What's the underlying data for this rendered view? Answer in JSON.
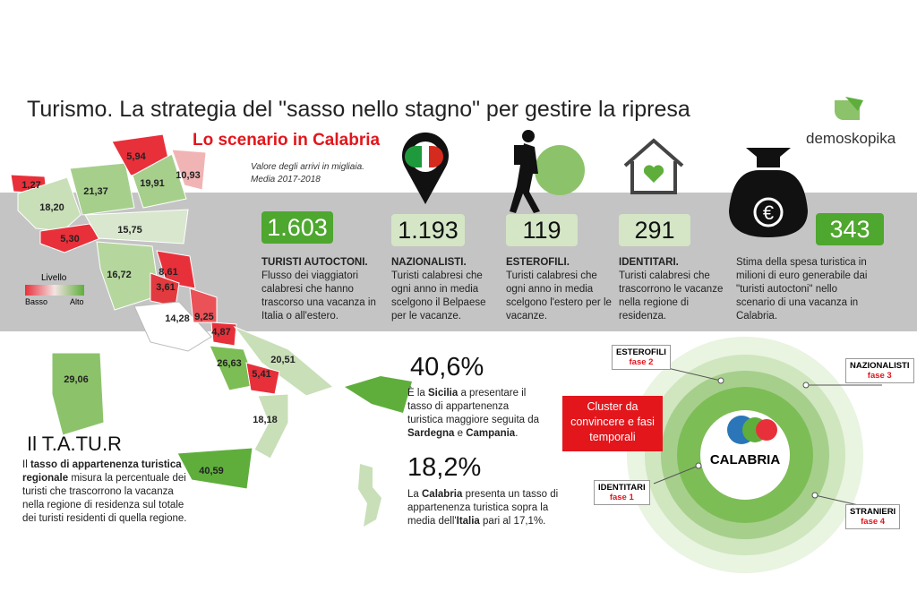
{
  "header": {
    "title": "Turismo. La strategia del \"sasso nello stagno\" per gestire la ripresa",
    "subtitle": "Lo scenario in Calabria",
    "logo": "demoskopika",
    "note": [
      "Valore degli arrivi in migliaia.",
      "Media 2017-2018"
    ]
  },
  "map": {
    "regions": [
      "1,27",
      "5,94",
      "10,93",
      "21,37",
      "19,91",
      "18,20",
      "15,75",
      "5,30",
      "16,72",
      "8,61",
      "3,61",
      "9,25",
      "14,28",
      "4,87",
      "26,63",
      "20,51",
      "5,41",
      "29,06",
      "18,18",
      "40,59"
    ],
    "legend": {
      "title": "Livello",
      "low": "Basso",
      "high": "Alto"
    }
  },
  "stats": [
    {
      "value": "1.603",
      "title": "TURISTI AUTOCTONI.",
      "text": "Flusso dei viaggiatori calabresi che hanno trascorso una vacanza in Italia o all'estero."
    },
    {
      "value": "1.193",
      "title": "NAZIONALISTI.",
      "text": "Turisti calabresi che ogni anno in media scelgono il Belpaese per le vacanze."
    },
    {
      "value": "119",
      "title": "ESTEROFILI.",
      "text": "Turisti calabresi che ogni anno in media scelgono l'estero per le vacanze."
    },
    {
      "value": "291",
      "title": "IDENTITARI.",
      "text": "Turisti calabresi che trascorrono le vacanze nella regione di residenza."
    },
    {
      "value": "343",
      "text": "Stima della spesa turistica in milioni di euro generabile dai \"turisti autoctoni\" nello scenario di una vacanza in Calabria."
    }
  ],
  "itatur": {
    "title": "Il T.A.TU.R",
    "body": [
      "Il ",
      "tasso di appartenenza turistica regionale",
      " misura la percentuale dei turisti che trascorrono la vacanza nella regione di residenza sul totale dei turisti residenti di quella regione."
    ]
  },
  "facts": [
    {
      "value": "40,6%",
      "body": [
        "È la ",
        "Sicilia",
        " a presentare il tasso di appartenenza turistica maggiore seguita da ",
        "Sardegna",
        " e ",
        "Campania",
        "."
      ]
    },
    {
      "value": "18,2%",
      "body": [
        "La ",
        "Calabria",
        " presenta un tasso di appartenenza turistica sopra la media dell'",
        "Italia",
        " pari al 17,1%."
      ]
    }
  ],
  "cluster": {
    "label": "Cluster da convincere e fasi temporali",
    "center": "CALABRIA",
    "phases": [
      {
        "name": "ESTEROFILI",
        "phase": "fase 2"
      },
      {
        "name": "NAZIONALISTI",
        "phase": "fase 3"
      },
      {
        "name": "IDENTITARI",
        "phase": "fase 1"
      },
      {
        "name": "STRANIERI",
        "phase": "fase 4"
      }
    ]
  }
}
